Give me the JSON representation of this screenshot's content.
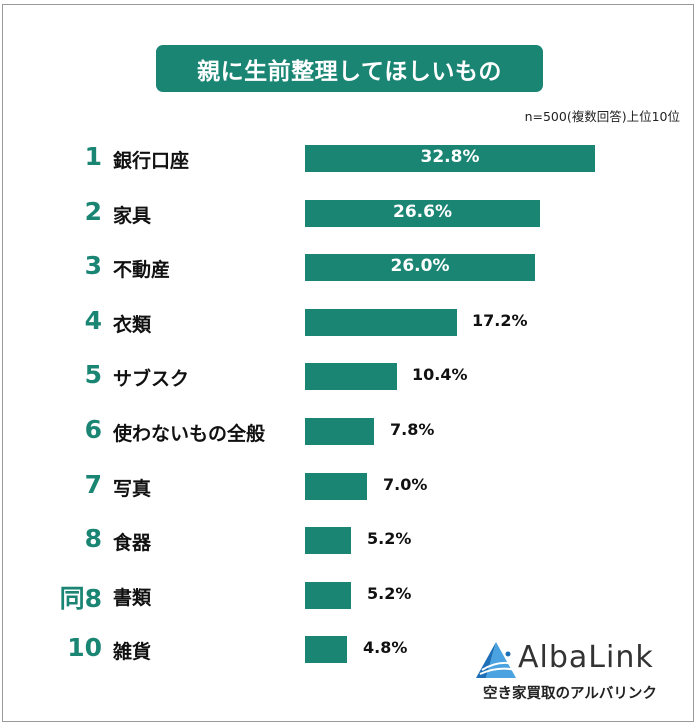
{
  "title": "親に生前整理してほしいもの",
  "note": "n=500(複数回答)上位10位",
  "colors": {
    "accent": "#1b8574",
    "text": "#111111",
    "frame": "#9a9a9a"
  },
  "rows": [
    {
      "rank": "1",
      "label": "銀行口座",
      "value": 32.8,
      "value_label": "32.8%"
    },
    {
      "rank": "2",
      "label": "家具",
      "value": 26.6,
      "value_label": "26.6%"
    },
    {
      "rank": "3",
      "label": "不動産",
      "value": 26.0,
      "value_label": "26.0%"
    },
    {
      "rank": "4",
      "label": "衣類",
      "value": 17.2,
      "value_label": "17.2%"
    },
    {
      "rank": "5",
      "label": "サブスク",
      "value": 10.4,
      "value_label": "10.4%"
    },
    {
      "rank": "6",
      "label": "使わないもの全般",
      "value": 7.8,
      "value_label": "7.8%"
    },
    {
      "rank": "7",
      "label": "写真",
      "value": 7.0,
      "value_label": "7.0%"
    },
    {
      "rank": "8",
      "label": "食器",
      "value": 5.2,
      "value_label": "5.2%"
    },
    {
      "rank": "同8",
      "label": "書類",
      "value": 5.2,
      "value_label": "5.2%"
    },
    {
      "rank": "10",
      "label": "雑貨",
      "value": 4.8,
      "value_label": "4.8%"
    }
  ],
  "logo": {
    "name": "AlbaLink",
    "tagline": "空き家買取のアルバリンク",
    "icon": "triangle-logo-icon"
  },
  "chart_data": {
    "type": "bar",
    "orientation": "horizontal",
    "title": "親に生前整理してほしいもの",
    "subtitle": "n=500(複数回答)上位10位",
    "categories": [
      "銀行口座",
      "家具",
      "不動産",
      "衣類",
      "サブスク",
      "使わないもの全般",
      "写真",
      "食器",
      "書類",
      "雑貨"
    ],
    "ranks": [
      "1",
      "2",
      "3",
      "4",
      "5",
      "6",
      "7",
      "8",
      "同8",
      "10"
    ],
    "values": [
      32.8,
      26.6,
      26.0,
      17.2,
      10.4,
      7.8,
      7.0,
      5.2,
      5.2,
      4.8
    ],
    "unit": "%",
    "xlabel": "",
    "ylabel": "",
    "grid": false,
    "legend": "none"
  }
}
